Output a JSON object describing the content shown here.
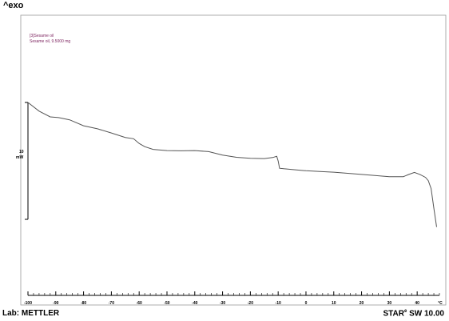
{
  "axis_header": "^exo",
  "legend": {
    "line1": "[3]Sesame oil",
    "line2": "Sesame oil, 9.5000 mg"
  },
  "scale_bar": {
    "value": "10",
    "unit": "mW"
  },
  "footer": {
    "lab": "Lab: METTLER",
    "software_main": "STAR",
    "software_sup": "e",
    "software_version": " SW 10.00"
  },
  "colors": {
    "curve": "#555555",
    "legend_text": "#7a1f5c",
    "frame": "#999999"
  },
  "chart_data": {
    "type": "line",
    "title": "",
    "xlabel": "°C",
    "ylabel": "",
    "xlim": [
      -100,
      48
    ],
    "x_ticks": [
      -100,
      -90,
      -80,
      -70,
      -60,
      -50,
      -40,
      -30,
      -20,
      -10,
      0,
      10,
      20,
      30,
      40
    ],
    "tick_labels": [
      "-100",
      "-90",
      "-80",
      "-70",
      "-60",
      "-50",
      "-40",
      "-30",
      "-20",
      "-10",
      "0",
      "10",
      "20",
      "30",
      "40",
      "°C"
    ],
    "grid": false,
    "series": [
      {
        "name": "",
        "x": [
          -100,
          -96,
          -92,
          -89,
          -85,
          -80,
          -75,
          -70,
          -65,
          -62,
          -60,
          -58,
          -55,
          -50,
          -45,
          -40,
          -35,
          -30,
          -25,
          -20,
          -15,
          -12,
          -10.5,
          -10,
          -9.5,
          -8,
          -5,
          0,
          5,
          10,
          20,
          30,
          35,
          37,
          39,
          41,
          43,
          44,
          45,
          46,
          47
        ],
        "y": [
          0,
          -3.5,
          -5.8,
          -6.1,
          -7.0,
          -9.4,
          -10.6,
          -12.3,
          -14.1,
          -14.6,
          -16.5,
          -17.8,
          -18.9,
          -19.4,
          -19.5,
          -19.4,
          -19.8,
          -21.2,
          -22.1,
          -22.5,
          -22.6,
          -22.2,
          -21.7,
          -23.6,
          -26.5,
          -26.7,
          -27.0,
          -27.5,
          -27.8,
          -28.1,
          -29.0,
          -29.9,
          -29.9,
          -29.0,
          -28.2,
          -29.0,
          -30.2,
          -31.5,
          -34.7,
          -42.5,
          -50.2
        ]
      }
    ]
  }
}
